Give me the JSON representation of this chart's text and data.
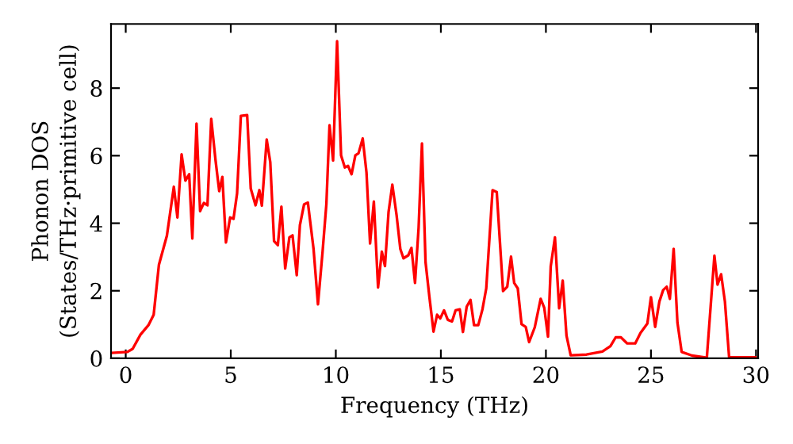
{
  "chart_data": {
    "type": "line",
    "xlabel": "Frequency (THz)",
    "ylabel": "Phonon DOS\n(States/THz·primitive cell)",
    "xlim": [
      -0.7,
      30.1
    ],
    "ylim": [
      0,
      9.9
    ],
    "xticks": [
      0,
      5,
      10,
      15,
      20,
      25,
      30
    ],
    "yticks": [
      0,
      2,
      4,
      6,
      8
    ],
    "grid": false,
    "marker": "none",
    "line_style": "solid",
    "series": [
      {
        "color": "#ff0000",
        "x": [
          -0.68,
          0.08,
          0.33,
          0.7,
          1.08,
          1.33,
          1.58,
          1.96,
          2.29,
          2.46,
          2.66,
          2.84,
          3.02,
          3.17,
          3.37,
          3.54,
          3.72,
          3.89,
          4.07,
          4.27,
          4.45,
          4.6,
          4.77,
          4.97,
          5.13,
          5.3,
          5.48,
          5.78,
          5.95,
          6.18,
          6.36,
          6.48,
          6.71,
          6.88,
          7.06,
          7.24,
          7.41,
          7.59,
          7.79,
          7.94,
          8.14,
          8.29,
          8.49,
          8.67,
          8.94,
          9.15,
          9.37,
          9.55,
          9.7,
          9.87,
          10.06,
          10.25,
          10.43,
          10.58,
          10.75,
          10.93,
          11.08,
          11.28,
          11.46,
          11.63,
          11.81,
          12.01,
          12.19,
          12.34,
          12.51,
          12.69,
          12.89,
          13.07,
          13.22,
          13.45,
          13.6,
          13.77,
          13.94,
          14.1,
          14.27,
          14.45,
          14.65,
          14.82,
          14.97,
          15.15,
          15.33,
          15.53,
          15.7,
          15.9,
          16.05,
          16.23,
          16.41,
          16.58,
          16.78,
          16.98,
          17.16,
          17.46,
          17.66,
          17.96,
          18.16,
          18.34,
          18.49,
          18.66,
          18.84,
          19.04,
          19.2,
          19.47,
          19.75,
          19.92,
          20.1,
          20.23,
          20.43,
          20.63,
          20.8,
          20.98,
          21.18,
          21.93,
          22.69,
          23.07,
          23.32,
          23.57,
          23.87,
          24.25,
          24.5,
          24.83,
          25.0,
          25.2,
          25.4,
          25.58,
          25.75,
          25.9,
          26.08,
          26.26,
          26.46,
          26.96,
          27.66,
          27.84,
          28.02,
          28.17,
          28.34,
          28.52,
          28.72,
          29.97
        ],
        "values": [
          0.16,
          0.19,
          0.28,
          0.7,
          0.98,
          1.29,
          2.77,
          3.63,
          5.08,
          4.17,
          6.04,
          5.26,
          5.45,
          3.55,
          6.95,
          4.36,
          4.6,
          4.53,
          7.09,
          5.89,
          4.95,
          5.37,
          3.43,
          4.17,
          4.13,
          4.88,
          7.18,
          7.2,
          5.03,
          4.53,
          4.98,
          4.52,
          6.48,
          5.81,
          3.47,
          3.35,
          4.49,
          2.66,
          3.58,
          3.64,
          2.46,
          3.94,
          4.56,
          4.61,
          3.24,
          1.6,
          3.16,
          4.56,
          6.9,
          5.86,
          9.39,
          6.01,
          5.65,
          5.7,
          5.45,
          6.01,
          6.07,
          6.51,
          5.5,
          3.4,
          4.64,
          2.1,
          3.16,
          2.73,
          4.33,
          5.14,
          4.25,
          3.24,
          2.96,
          3.05,
          3.27,
          2.23,
          3.86,
          6.36,
          2.85,
          1.84,
          0.79,
          1.29,
          1.18,
          1.42,
          1.14,
          1.09,
          1.42,
          1.45,
          0.78,
          1.53,
          1.73,
          0.98,
          0.98,
          1.45,
          2.07,
          4.98,
          4.92,
          1.99,
          2.12,
          3.01,
          2.23,
          2.07,
          1.01,
          0.93,
          0.48,
          0.92,
          1.76,
          1.5,
          0.64,
          2.73,
          3.58,
          1.48,
          2.3,
          0.67,
          0.09,
          0.11,
          0.2,
          0.36,
          0.62,
          0.62,
          0.44,
          0.44,
          0.75,
          1.03,
          1.81,
          0.93,
          1.68,
          2.02,
          2.12,
          1.76,
          3.24,
          1.06,
          0.19,
          0.08,
          0.02,
          1.53,
          3.04,
          2.18,
          2.49,
          1.68,
          0.03,
          0.03
        ]
      }
    ]
  }
}
